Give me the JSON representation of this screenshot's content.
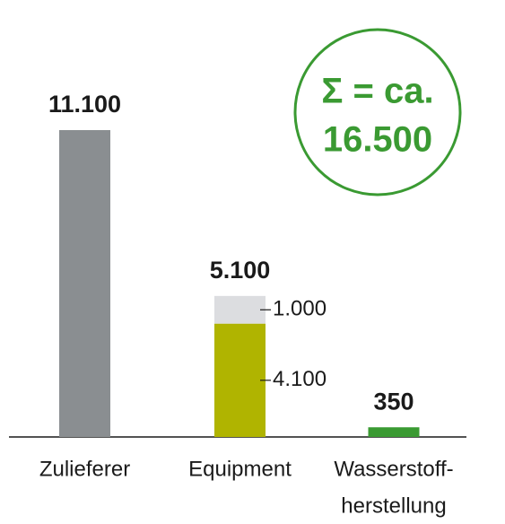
{
  "chart_data": {
    "type": "bar",
    "categories": [
      [
        "Zulieferer"
      ],
      [
        "Equipment"
      ],
      [
        "Wasserstoff-",
        "herstellung"
      ]
    ],
    "totals": [
      11100,
      5100,
      350
    ],
    "total_labels": [
      "11.100",
      "5.100",
      "350"
    ],
    "series": [
      {
        "colors": [
          "#8a8e91",
          "#b0b400",
          "#3a9a32"
        ],
        "values": [
          11100,
          4100,
          350
        ],
        "value_labels": [
          null,
          "4.100",
          null
        ]
      },
      {
        "color": "#dcdde0",
        "values": [
          null,
          1000,
          null
        ],
        "value_labels": [
          null,
          "1.000",
          null
        ]
      }
    ],
    "annotation": {
      "lines": [
        "Σ = ca.",
        "16.500"
      ],
      "color": "#3a9a32"
    }
  }
}
